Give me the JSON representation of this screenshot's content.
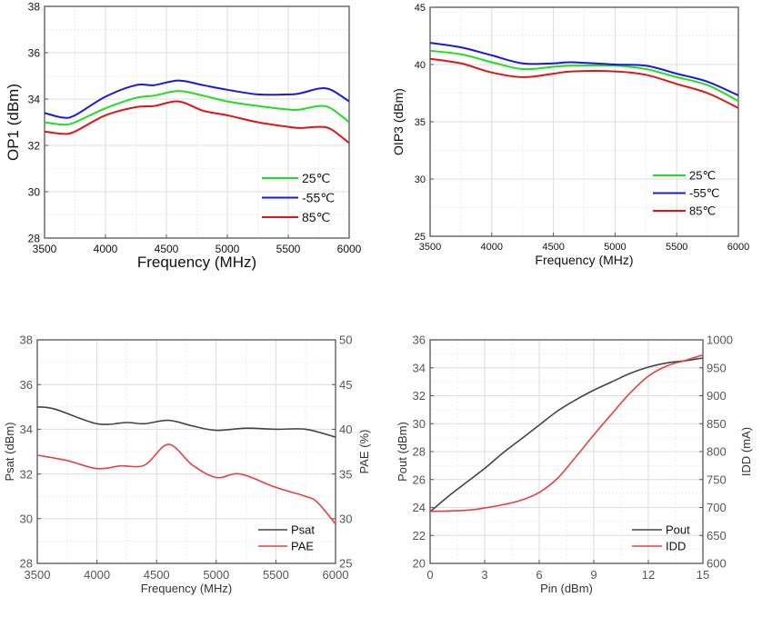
{
  "chart_data": [
    {
      "type": "line",
      "xlabel": "Frequency  (MHz)",
      "ylabel": "OP1 (dBm)",
      "xlim": [
        3500,
        6000
      ],
      "ylim": [
        28,
        38
      ],
      "xticks": [
        3500,
        4000,
        4500,
        5000,
        5500,
        6000
      ],
      "yticks": [
        28,
        30,
        32,
        34,
        36,
        38
      ],
      "grid": true,
      "legend_position": "bottom-right",
      "x": [
        3500,
        3650,
        3750,
        4000,
        4250,
        4400,
        4600,
        4800,
        5000,
        5250,
        5500,
        5600,
        5750,
        5850,
        6000
      ],
      "series": [
        {
          "name": "25℃",
          "color": "#22dd22",
          "values": [
            33.0,
            32.9,
            33.0,
            33.6,
            34.05,
            34.15,
            34.35,
            34.15,
            33.9,
            33.7,
            33.55,
            33.55,
            33.7,
            33.6,
            33.0
          ]
        },
        {
          "name": "-55℃",
          "color": "#1a1ad6",
          "values": [
            33.4,
            33.2,
            33.3,
            34.1,
            34.6,
            34.6,
            34.8,
            34.6,
            34.4,
            34.2,
            34.2,
            34.25,
            34.45,
            34.4,
            33.9
          ]
        },
        {
          "name": "85℃",
          "color": "#e01515",
          "values": [
            32.6,
            32.5,
            32.6,
            33.3,
            33.65,
            33.7,
            33.9,
            33.5,
            33.3,
            33.0,
            32.8,
            32.75,
            32.8,
            32.7,
            32.1
          ]
        }
      ]
    },
    {
      "type": "line",
      "xlabel": "Frequency  (MHz)",
      "ylabel": "OIP3 (dBm)",
      "xlim": [
        3500,
        6000
      ],
      "ylim": [
        25,
        45
      ],
      "xticks": [
        3500,
        4000,
        4500,
        5000,
        5500,
        6000
      ],
      "yticks": [
        25,
        30,
        35,
        40,
        45
      ],
      "grid": true,
      "legend_position": "bottom-right",
      "x": [
        3500,
        3750,
        4000,
        4250,
        4500,
        4650,
        5000,
        5250,
        5500,
        5750,
        6000
      ],
      "series": [
        {
          "name": "25℃",
          "color": "#22dd22",
          "values": [
            41.2,
            40.9,
            40.2,
            39.6,
            39.8,
            39.9,
            39.9,
            39.6,
            38.9,
            38.2,
            36.8
          ]
        },
        {
          "name": "-55℃",
          "color": "#1a1ad6",
          "values": [
            41.9,
            41.5,
            40.8,
            40.1,
            40.1,
            40.2,
            40.0,
            39.9,
            39.2,
            38.5,
            37.3
          ]
        },
        {
          "name": "85℃",
          "color": "#e01515",
          "values": [
            40.5,
            40.1,
            39.3,
            38.9,
            39.2,
            39.4,
            39.4,
            39.1,
            38.3,
            37.5,
            36.2
          ]
        }
      ]
    },
    {
      "type": "line",
      "xlabel": "Frequency (MHz)",
      "ylabel": "Psat (dBm)",
      "y2label": "PAE (%)",
      "xlim": [
        3500,
        6000
      ],
      "ylim": [
        28,
        38
      ],
      "y2lim": [
        25,
        50
      ],
      "xticks": [
        3500,
        4000,
        4500,
        5000,
        5500,
        6000
      ],
      "yticks": [
        28,
        30,
        32,
        34,
        36,
        38
      ],
      "y2ticks": [
        25,
        30,
        35,
        40,
        45,
        50
      ],
      "grid": true,
      "legend_position": "bottom-right",
      "series": [
        {
          "name": "Psat",
          "color": "#444444",
          "axis": "left",
          "x": [
            3500,
            3650,
            4000,
            4250,
            4400,
            4600,
            4800,
            5000,
            5250,
            5500,
            5750,
            6000
          ],
          "values": [
            35.0,
            34.9,
            34.25,
            34.3,
            34.25,
            34.4,
            34.15,
            33.95,
            34.05,
            34.0,
            34.0,
            33.65
          ]
        },
        {
          "name": "PAE",
          "color": "#e84040",
          "axis": "right",
          "x": [
            3500,
            3750,
            4000,
            4200,
            4400,
            4600,
            4800,
            5000,
            5200,
            5500,
            5750,
            5850,
            6000
          ],
          "values": [
            37.1,
            36.5,
            35.6,
            35.9,
            36.0,
            38.3,
            36.0,
            34.6,
            35.0,
            33.5,
            32.5,
            31.8,
            29.4
          ]
        }
      ]
    },
    {
      "type": "line",
      "xlabel": "Pin (dBm)",
      "ylabel": "Pout (dBm)",
      "y2label": "IDD (mA)",
      "xlim": [
        0,
        15
      ],
      "ylim": [
        20,
        36
      ],
      "y2lim": [
        600,
        1000
      ],
      "xticks": [
        0,
        3,
        6,
        9,
        12,
        15
      ],
      "yticks": [
        20,
        22,
        24,
        26,
        28,
        30,
        32,
        34,
        36
      ],
      "y2ticks": [
        600,
        650,
        700,
        750,
        800,
        850,
        900,
        950,
        1000
      ],
      "grid": true,
      "legend_position": "bottom-right",
      "series": [
        {
          "name": "Pout",
          "color": "#444444",
          "axis": "left",
          "x": [
            0,
            1,
            2,
            3,
            4,
            5,
            6,
            7,
            8,
            9,
            10,
            11,
            12,
            13,
            14,
            15
          ],
          "values": [
            23.7,
            24.8,
            25.8,
            26.8,
            27.9,
            28.9,
            29.9,
            30.9,
            31.7,
            32.4,
            33.0,
            33.6,
            34.05,
            34.35,
            34.5,
            34.7
          ]
        },
        {
          "name": "IDD",
          "color": "#e84040",
          "axis": "right",
          "x": [
            0,
            2,
            3,
            4,
            5,
            6,
            7,
            8,
            9,
            10,
            11,
            12,
            13,
            14,
            15
          ],
          "values": [
            693,
            695,
            699,
            705,
            713,
            727,
            752,
            790,
            830,
            868,
            905,
            935,
            953,
            963,
            973
          ]
        }
      ]
    }
  ]
}
